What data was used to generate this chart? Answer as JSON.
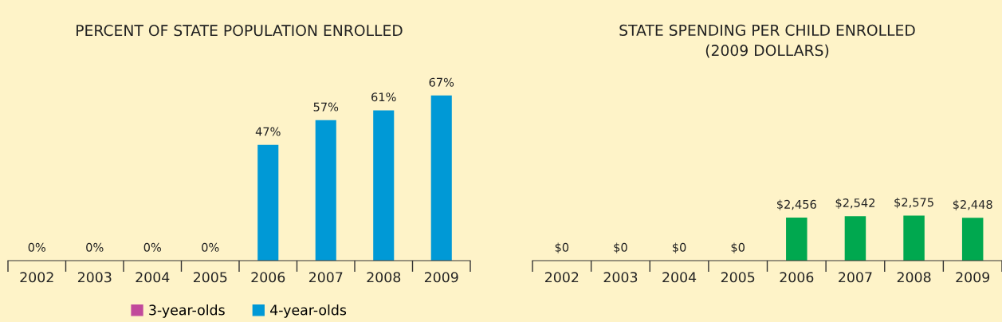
{
  "chart_data": [
    {
      "type": "bar",
      "title": "PERCENT OF STATE POPULATION ENROLLED",
      "categories": [
        "2002",
        "2003",
        "2004",
        "2005",
        "2006",
        "2007",
        "2008",
        "2009"
      ],
      "stacked": true,
      "series": [
        {
          "name": "3-year-olds",
          "color": "#c1499b",
          "values": [
            null,
            null,
            null,
            null,
            null,
            null,
            null,
            null
          ]
        },
        {
          "name": "4-year-olds",
          "color": "#0099d6",
          "values": [
            0,
            0,
            0,
            0,
            47,
            57,
            61,
            67
          ],
          "value_labels": [
            "0%",
            "0%",
            "0%",
            "0%",
            "47%",
            "57%",
            "61%",
            "67%"
          ]
        }
      ],
      "tick_labels": "x",
      "legend": "bottom",
      "grid": false
    },
    {
      "type": "bar",
      "title": "STATE SPENDING PER CHILD ENROLLED\n(2009 DOLLARS)",
      "categories": [
        "2002",
        "2003",
        "2004",
        "2005",
        "2006",
        "2007",
        "2008",
        "2009"
      ],
      "series": [
        {
          "color": "#00a84f",
          "values": [
            0,
            0,
            0,
            0,
            2456,
            2542,
            2575,
            2448
          ],
          "value_labels": [
            "$0",
            "$0",
            "$0",
            "$0",
            "$2,456",
            "$2,542",
            "$2,575",
            "$2,448"
          ]
        }
      ],
      "tick_labels": "x",
      "grid": false
    }
  ]
}
